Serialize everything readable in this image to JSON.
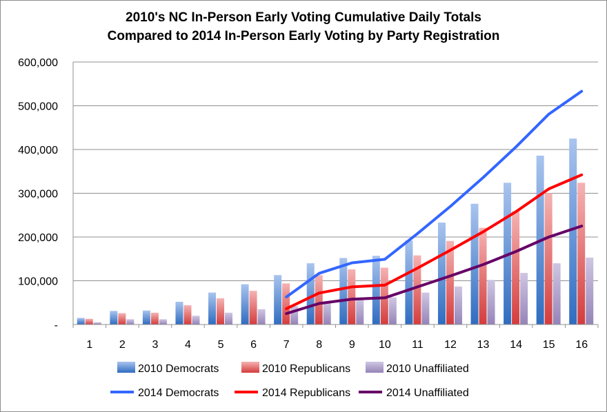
{
  "chart_data": {
    "type": "bar",
    "title_lines": [
      "2010's NC In-Person Early Voting Cumulative Daily Totals",
      "Compared to 2014 In-Person Early Voting by Party Registration"
    ],
    "categories": [
      "1",
      "2",
      "3",
      "4",
      "5",
      "6",
      "7",
      "8",
      "9",
      "10",
      "11",
      "12",
      "13",
      "14",
      "15",
      "16"
    ],
    "y_tick_labels": [
      "-",
      "100,000",
      "200,000",
      "300,000",
      "400,000",
      "500,000",
      "600,000"
    ],
    "ylim": [
      0,
      600000
    ],
    "y_step": 100000,
    "grid": true,
    "legend_position": "bottom",
    "bar_series": [
      {
        "name": "2010 Democrats",
        "color": "#4f81bd",
        "values": [
          15000,
          31000,
          32000,
          52000,
          73000,
          92000,
          113000,
          140000,
          152000,
          157000,
          192000,
          233000,
          276000,
          324000,
          386000,
          425000
        ]
      },
      {
        "name": "2010 Republicans",
        "color": "#e26a6a",
        "values": [
          13000,
          26000,
          27000,
          44000,
          60000,
          77000,
          94000,
          113000,
          126000,
          130000,
          158000,
          191000,
          221000,
          259000,
          300000,
          324000
        ]
      },
      {
        "name": "2010 Unaffiliated",
        "color": "#a99bc6",
        "values": [
          5000,
          12000,
          12000,
          20000,
          27000,
          35000,
          42000,
          52000,
          59000,
          62000,
          73000,
          87000,
          102000,
          118000,
          140000,
          153000
        ]
      }
    ],
    "line_series": [
      {
        "name": "2014 Democrats",
        "color": "#3366ff",
        "start_index": 6,
        "values": [
          63000,
          117000,
          141000,
          149000,
          208000,
          270000,
          336000,
          406000,
          481000,
          533000
        ]
      },
      {
        "name": "2014 Republicans",
        "color": "#ff0000",
        "start_index": 6,
        "values": [
          36000,
          72000,
          86000,
          90000,
          129000,
          170000,
          212000,
          258000,
          310000,
          342000
        ]
      },
      {
        "name": "2014 Unaffiliated",
        "color": "#660066",
        "start_index": 6,
        "values": [
          25000,
          48000,
          58000,
          61000,
          86000,
          111000,
          137000,
          167000,
          200000,
          225000
        ]
      }
    ]
  }
}
